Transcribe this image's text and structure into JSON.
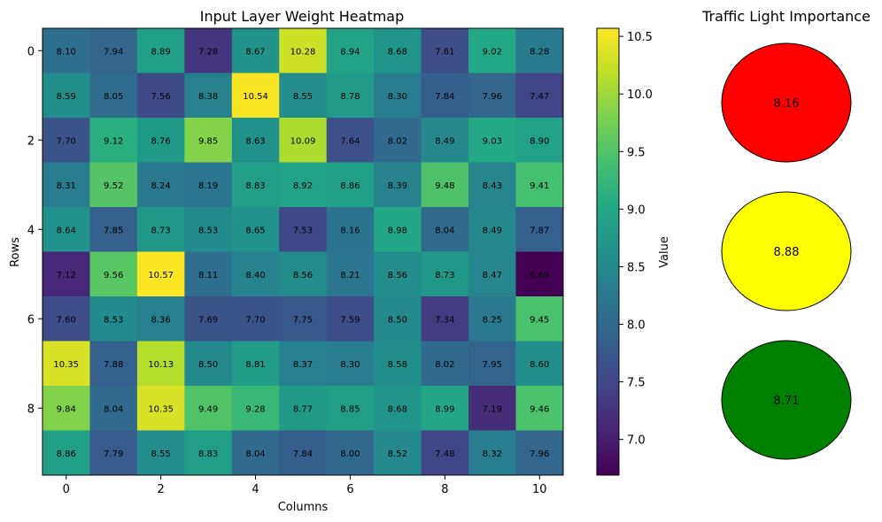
{
  "chart_data": [
    {
      "type": "heatmap",
      "title": "Input Layer Weight Heatmap",
      "xlabel": "Columns",
      "ylabel": "Rows",
      "colorbar_label": "Value",
      "colormap": "viridis",
      "value_range": [
        6.69,
        10.57
      ],
      "x_ticks": [
        0,
        2,
        4,
        6,
        8,
        10
      ],
      "y_ticks": [
        0,
        2,
        4,
        6,
        8
      ],
      "colorbar_ticks": [
        "7.0",
        "7.5",
        "8.0",
        "8.5",
        "9.0",
        "9.5",
        "10.0",
        "10.5"
      ],
      "values": [
        [
          8.1,
          7.94,
          8.89,
          7.28,
          8.67,
          10.28,
          8.94,
          8.68,
          7.61,
          9.02,
          8.28
        ],
        [
          8.59,
          8.05,
          7.56,
          8.38,
          10.54,
          8.55,
          8.78,
          8.3,
          7.84,
          7.96,
          7.47
        ],
        [
          7.7,
          9.12,
          8.76,
          9.85,
          8.63,
          10.09,
          7.64,
          8.02,
          8.49,
          9.03,
          8.9
        ],
        [
          8.31,
          9.52,
          8.24,
          8.19,
          8.83,
          8.92,
          8.86,
          8.39,
          9.48,
          8.43,
          9.41
        ],
        [
          8.64,
          7.85,
          8.73,
          8.53,
          8.65,
          7.53,
          8.16,
          8.98,
          8.04,
          8.49,
          7.87
        ],
        [
          7.12,
          9.56,
          10.57,
          8.11,
          8.4,
          8.56,
          8.21,
          8.56,
          8.73,
          8.47,
          6.69
        ],
        [
          7.6,
          8.53,
          8.36,
          7.69,
          7.7,
          7.75,
          7.59,
          8.5,
          7.34,
          8.25,
          9.45
        ],
        [
          10.35,
          7.88,
          10.13,
          8.5,
          8.81,
          8.37,
          8.3,
          8.58,
          8.02,
          7.95,
          8.6
        ],
        [
          9.84,
          8.04,
          10.35,
          9.49,
          9.28,
          8.77,
          8.85,
          8.68,
          8.99,
          7.19,
          9.46
        ],
        [
          8.86,
          7.79,
          8.55,
          8.83,
          8.04,
          7.84,
          8.0,
          8.52,
          7.48,
          8.32,
          7.96
        ]
      ]
    },
    {
      "type": "other",
      "title": "Traffic Light Importance",
      "lights": [
        {
          "color": "#ff0000",
          "value": "8.16"
        },
        {
          "color": "#ffff00",
          "value": "8.88"
        },
        {
          "color": "#008000",
          "value": "8.71"
        }
      ]
    }
  ]
}
